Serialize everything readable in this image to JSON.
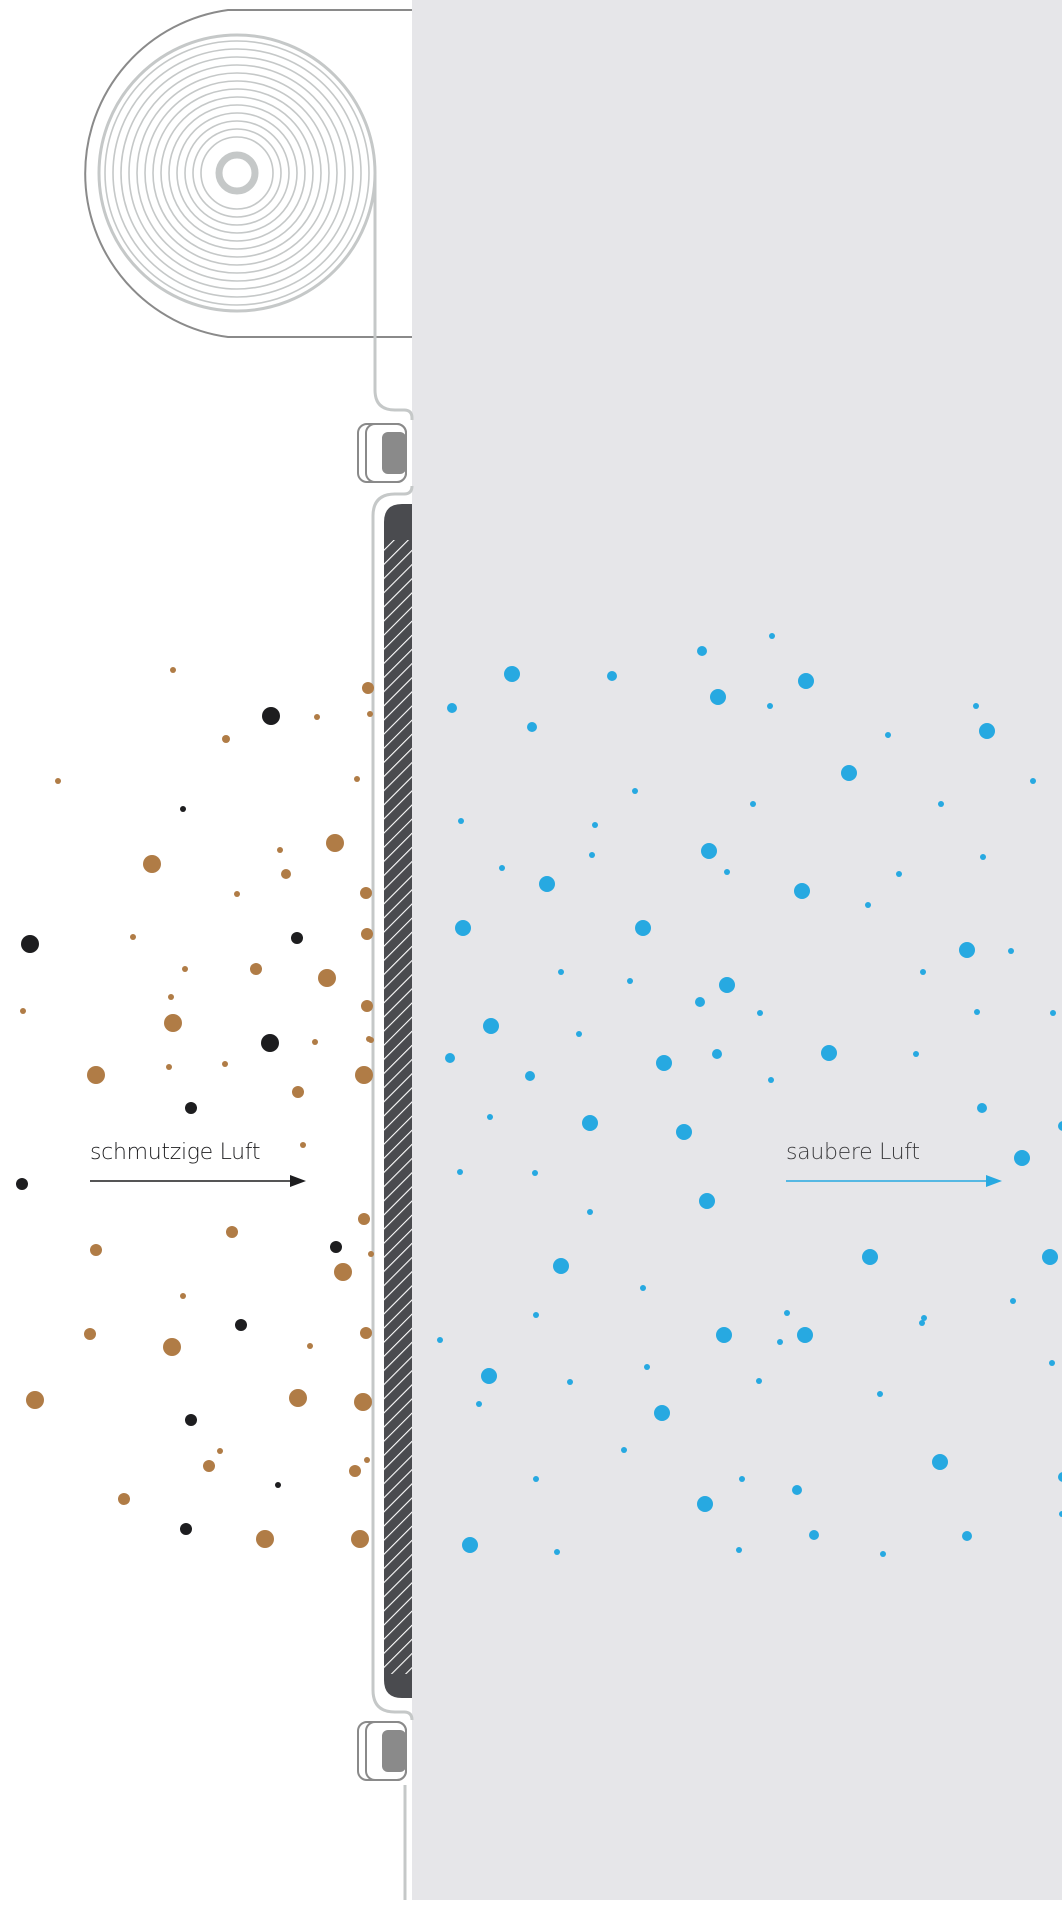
{
  "labels": {
    "dirty_air": "schmutzige Luft",
    "clean_air": "saubere Luft"
  },
  "colors": {
    "clean_side_background": "#e6e6e9",
    "dirt_brown": "#b07c46",
    "dirt_black": "#1d1d1f",
    "clean_blue": "#27a9e1",
    "filter_dark": "#4a4b4f",
    "outline_gray": "#8a8a8a",
    "housing_gray": "#c5c8c8"
  },
  "icons": {
    "fan": "spiral-fan-icon",
    "clip": "filter-clip-icon",
    "filter": "hatched-filter-mesh"
  }
}
